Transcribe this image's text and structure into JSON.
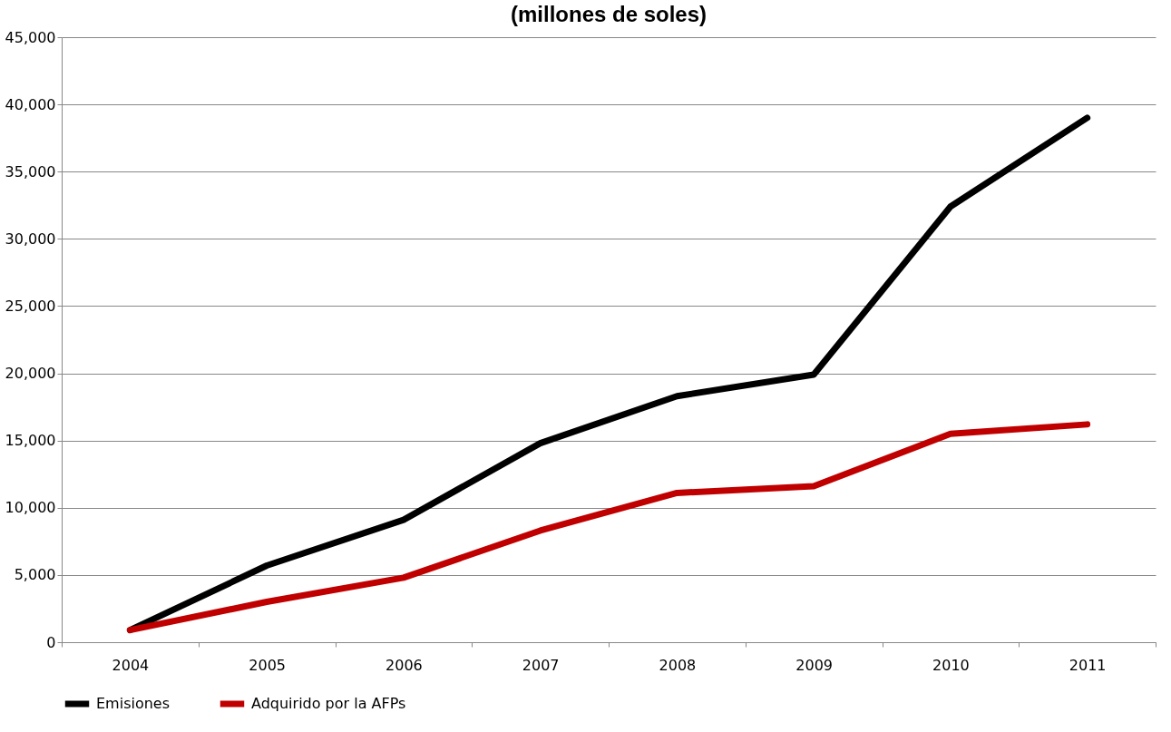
{
  "chart_data": {
    "type": "line",
    "title": "(millones de soles)",
    "categories": [
      "2004",
      "2005",
      "2006",
      "2007",
      "2008",
      "2009",
      "2010",
      "2011"
    ],
    "series": [
      {
        "name": "Emisiones",
        "color": "#000000",
        "values": [
          900,
          5700,
          9100,
          14800,
          18300,
          19900,
          32400,
          39000
        ]
      },
      {
        "name": "Adquirido por la AFPs",
        "color": "#c00000",
        "values": [
          900,
          3000,
          4800,
          8300,
          11100,
          11600,
          15500,
          16200
        ]
      }
    ],
    "ylim": [
      0,
      45000
    ],
    "yticks": [
      0,
      {
        "value": 5000,
        "label": "5,000"
      },
      {
        "value": 10000,
        "label": "10,000"
      },
      {
        "value": 15000,
        "label": "15,000"
      },
      {
        "value": 20000,
        "label": "20,000"
      },
      {
        "value": 25000,
        "label": "25,000"
      },
      {
        "value": 30000,
        "label": "30,000"
      },
      {
        "value": 35000,
        "label": "35,000"
      },
      {
        "value": 40000,
        "label": "40,000"
      },
      {
        "value": 45000,
        "label": "45,000"
      }
    ],
    "grid": "y",
    "legend": "bottom",
    "marker": "none",
    "line_style": "solid"
  }
}
